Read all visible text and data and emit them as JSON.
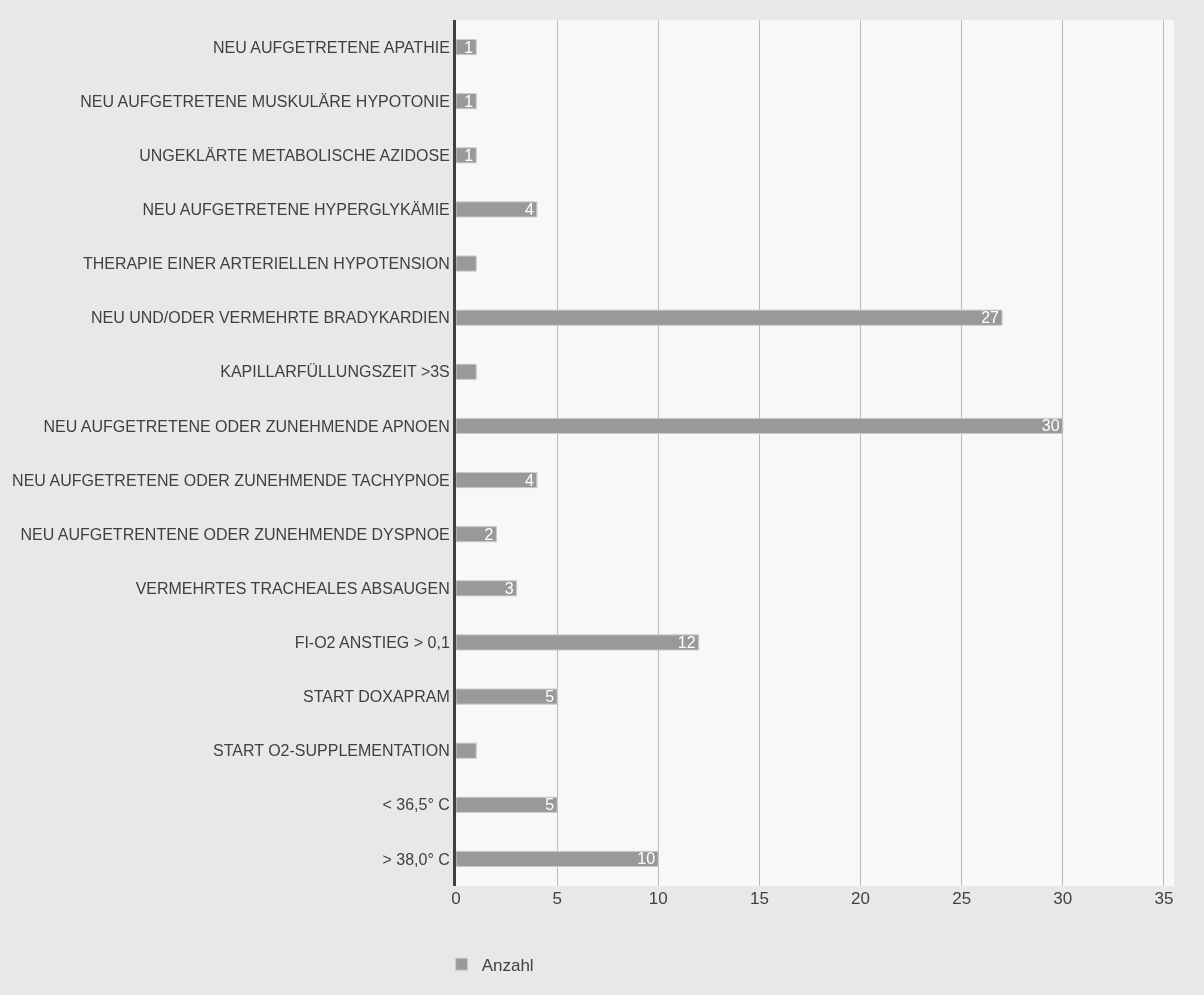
{
  "chart_data": {
    "type": "bar",
    "orientation": "horizontal",
    "categories": [
      "NEU AUFGETRETENE APATHIE",
      "NEU AUFGETRETENE MUSKULÄRE HYPOTONIE",
      "UNGEKLÄRTE METABOLISCHE AZIDOSE",
      "NEU AUFGETRETENE HYPERGLYKÄMIE",
      "THERAPIE EINER ARTERIELLEN HYPOTENSION",
      "NEU UND/ODER VERMEHRTE BRADYKARDIEN",
      "KAPILLARFÜLLUNGSZEIT >3S",
      "NEU AUFGETRETENE ODER ZUNEHMENDE APNOEN",
      "NEU AUFGETRETENE ODER ZUNEHMENDE TACHYPNOE",
      "NEU AUFGETRENTENE ODER ZUNEHMENDE DYSPNOE",
      "VERMEHRTES TRACHEALES ABSAUGEN",
      "FI-O2 ANSTIEG > 0,1",
      "START DOXAPRAM",
      "START O2-SUPPLEMENTATION",
      "< 36,5° C",
      "> 38,0° C"
    ],
    "series": [
      {
        "name": "Anzahl",
        "color": "#999999",
        "values": [
          1,
          1,
          1,
          4,
          1,
          27,
          1,
          30,
          4,
          2,
          3,
          12,
          5,
          1,
          5,
          10
        ],
        "value_labels": [
          "1",
          "1",
          "1",
          "4",
          null,
          "27",
          null,
          "30",
          "4",
          "2",
          "3",
          "12",
          "5",
          null,
          "5",
          "10"
        ]
      }
    ],
    "xlim": [
      0,
      35.5
    ],
    "xticks": [
      0,
      5,
      10,
      15,
      20,
      25,
      30,
      35
    ],
    "grid": "x",
    "legend": "bottom left"
  }
}
